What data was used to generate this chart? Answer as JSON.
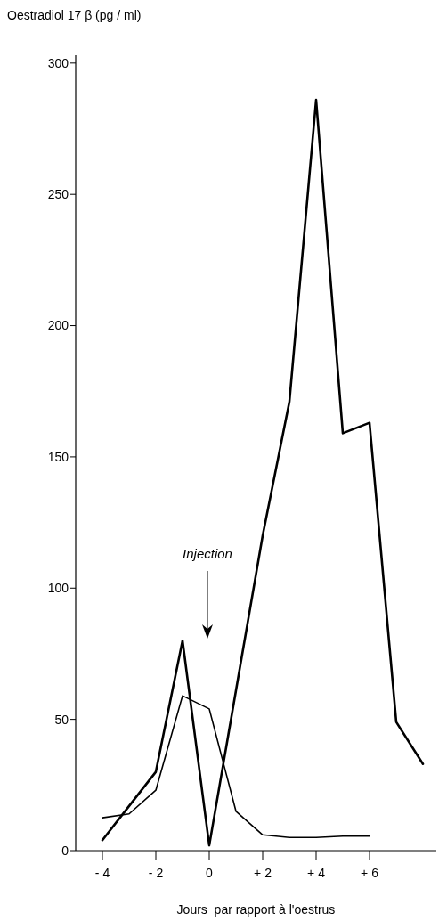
{
  "chart_data": {
    "type": "line",
    "ylabel": "Oestradiol 17 β (pg / ml)",
    "xlabel": "Jours  par rapport à l'oestrus",
    "xlim": [
      -5,
      8.5
    ],
    "ylim": [
      0,
      303
    ],
    "xticks": [
      {
        "value": -4,
        "label": "- 4"
      },
      {
        "value": -2,
        "label": "- 2"
      },
      0,
      {
        "value": 2,
        "label": "+ 2"
      },
      {
        "value": 4,
        "label": "+ 4"
      },
      {
        "value": 6,
        "label": "+ 6"
      }
    ],
    "yticks": [
      0,
      50,
      100,
      150,
      200,
      250,
      300
    ],
    "series": [
      {
        "color": "#000000",
        "x": [
          -4,
          -3,
          -2,
          -1,
          0,
          1,
          2,
          3,
          4,
          5,
          6,
          7,
          8
        ],
        "values": [
          4,
          17,
          30,
          80,
          2,
          61,
          120,
          171,
          286,
          159,
          163,
          49,
          33
        ]
      },
      {
        "color": "#000000",
        "x": [
          -4,
          -3,
          -2,
          -1,
          0,
          1,
          2,
          3,
          4,
          5,
          6
        ],
        "values": [
          12.5,
          14,
          23,
          59,
          54,
          15,
          6,
          5,
          5,
          5.5,
          5.5
        ]
      }
    ],
    "annotations": [
      "Injection"
    ],
    "grid": false,
    "marker": "none",
    "line_style": "solid"
  }
}
